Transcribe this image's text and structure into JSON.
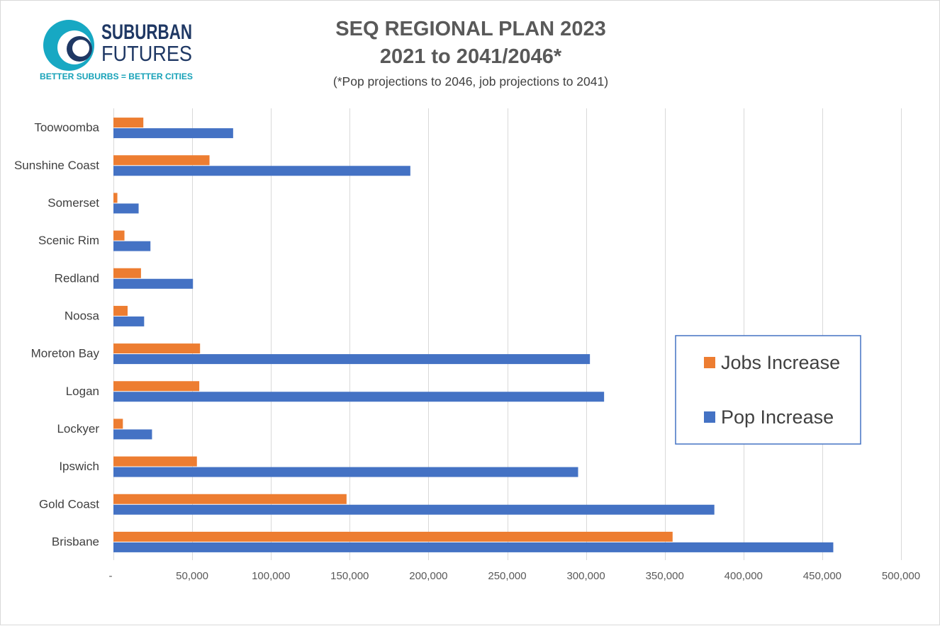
{
  "logo": {
    "line1": "SUBURBAN",
    "line2": "FUTURES",
    "tagline": "BETTER SUBURBS = BETTER CITIES",
    "icon": "circle-swirl-icon",
    "colors": {
      "teal": "#17a8c3",
      "navy": "#1f3864"
    }
  },
  "chart_data": {
    "type": "bar",
    "orientation": "horizontal",
    "title": "SEQ REGIONAL PLAN 2023",
    "title_line2": "2021 to 2041/2046*",
    "subtitle": "(*Pop projections to 2046, job projections to 2041)",
    "categories": [
      "Toowoomba",
      "Sunshine Coast",
      "Somerset",
      "Scenic Rim",
      "Redland",
      "Noosa",
      "Moreton Bay",
      "Logan",
      "Lockyer",
      "Ipswich",
      "Gold Coast",
      "Brisbane"
    ],
    "series": [
      {
        "name": "Jobs Increase",
        "color": "#ed7d31",
        "values": [
          19000,
          61000,
          2500,
          7000,
          17500,
          9000,
          55000,
          54500,
          6000,
          53000,
          148000,
          355000
        ]
      },
      {
        "name": "Pop Increase",
        "color": "#4472c4",
        "values": [
          76000,
          188500,
          16000,
          23500,
          50500,
          19500,
          302500,
          311500,
          24500,
          295000,
          381500,
          457000
        ]
      }
    ],
    "xlim": [
      0,
      500000
    ],
    "xticks": [
      "-",
      "50,000",
      "100,000",
      "150,000",
      "200,000",
      "250,000",
      "300,000",
      "350,000",
      "400,000",
      "450,000",
      "500,000"
    ],
    "grid": true,
    "legend_placement": "right"
  }
}
